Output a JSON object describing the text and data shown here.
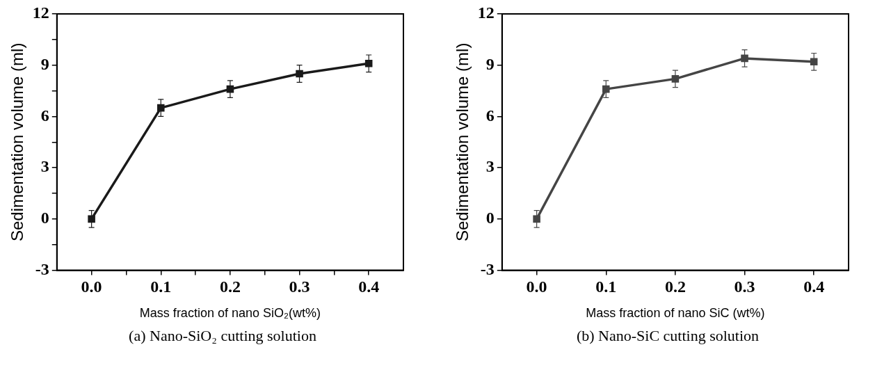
{
  "chart_data": [
    {
      "type": "line",
      "x": [
        0,
        0.1,
        0.2,
        0.3,
        0.4
      ],
      "xlim": [
        -0.05,
        0.45
      ],
      "xticks": [
        {
          "value": 0,
          "label": "0.0"
        },
        {
          "value": 0.05,
          "label": null
        },
        {
          "value": 0.1,
          "label": "0.1"
        },
        {
          "value": 0.15,
          "label": null
        },
        {
          "value": 0.2,
          "label": "0.2"
        },
        {
          "value": 0.25,
          "label": null
        },
        {
          "value": 0.3,
          "label": "0.3"
        },
        {
          "value": 0.35,
          "label": null
        },
        {
          "value": 0.4,
          "label": "0.4"
        }
      ],
      "ylim": [
        -3,
        12
      ],
      "yticks": [
        -3,
        {
          "value": -1.5,
          "label": null
        },
        0,
        {
          "value": 1.5,
          "label": null
        },
        3,
        {
          "value": 4.5,
          "label": null
        },
        6,
        {
          "value": 7.5,
          "label": null
        },
        9,
        {
          "value": 10.5,
          "label": null
        },
        12
      ],
      "xlabel": "Mass fraction of nano SiO₂(wt%)",
      "ylabel": "Sedimentation volume (ml)",
      "marker": "square",
      "line_style": "solid",
      "grid": false,
      "legend": false,
      "annotations": [
        "(a) Nano-SiO₂ cutting solution"
      ],
      "series": [
        {
          "color": "#1a1a1a",
          "values": [
            0,
            6.5,
            7.6,
            8.5,
            9.1
          ],
          "errors": [
            0.5,
            0.5,
            0.5,
            0.5,
            0.5
          ]
        }
      ]
    },
    {
      "type": "line",
      "x": [
        0,
        0.1,
        0.2,
        0.3,
        0.4
      ],
      "xlim": [
        -0.05,
        0.45
      ],
      "xticks": [
        {
          "value": 0,
          "label": "0.0"
        },
        {
          "value": 0.1,
          "label": "0.1"
        },
        {
          "value": 0.2,
          "label": "0.2"
        },
        {
          "value": 0.3,
          "label": "0.3"
        },
        {
          "value": 0.4,
          "label": "0.4"
        }
      ],
      "ylim": [
        -3,
        12
      ],
      "yticks": [
        -3,
        0,
        3,
        6,
        9,
        12
      ],
      "xlabel": "Mass fraction of nano SiC (wt%)",
      "ylabel": "Sedimentation volume (ml)",
      "marker": "square",
      "line_style": "solid",
      "grid": false,
      "legend": false,
      "annotations": [
        "(b) Nano-SiC cutting solution"
      ],
      "series": [
        {
          "color": "#454545",
          "values": [
            0,
            7.6,
            8.2,
            9.4,
            9.2
          ],
          "errors": [
            0.5,
            0.5,
            0.5,
            0.5,
            0.5
          ]
        }
      ]
    }
  ]
}
